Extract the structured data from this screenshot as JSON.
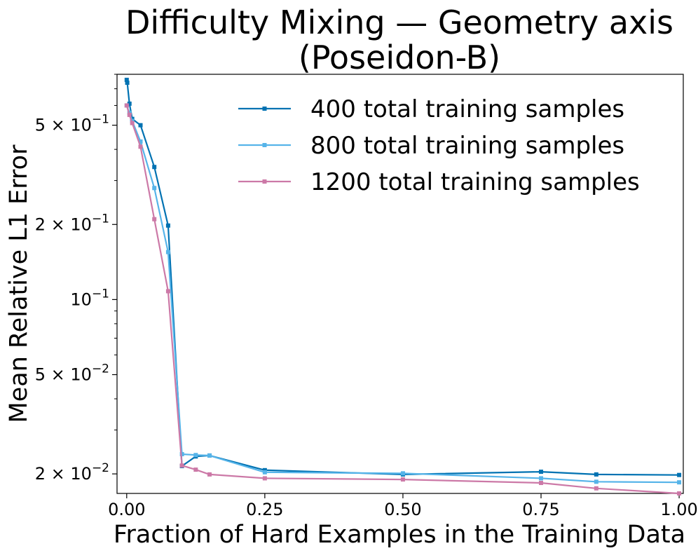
{
  "chart_data": {
    "type": "line",
    "title_line1": "Difficulty Mixing — Geometry axis",
    "title_line2": "(Poseidon-B)",
    "xlabel": "Fraction of Hard Examples in the Training Data",
    "ylabel": "Mean Relative L1 Error",
    "xlim": [
      -0.0175,
      1.0075
    ],
    "ylim": [
      0.0167,
      0.8
    ],
    "yscale": "log",
    "x_ticks": [
      {
        "value": 0.0,
        "label": "0.00"
      },
      {
        "value": 0.25,
        "label": "0.25"
      },
      {
        "value": 0.5,
        "label": "0.50"
      },
      {
        "value": 0.75,
        "label": "0.75"
      },
      {
        "value": 1.0,
        "label": "1.00"
      }
    ],
    "y_ticks": [
      {
        "value": 0.5,
        "base": "5 × 10",
        "exp": "−1"
      },
      {
        "value": 0.2,
        "base": "2 × 10",
        "exp": "−1"
      },
      {
        "value": 0.1,
        "base": "10",
        "exp": "−1"
      },
      {
        "value": 0.05,
        "base": "5 × 10",
        "exp": "−2"
      },
      {
        "value": 0.02,
        "base": "2 × 10",
        "exp": "−2"
      }
    ],
    "legend_position": "upper-right",
    "series": [
      {
        "name": "400 total training samples",
        "color": "#0072b2",
        "x": [
          0.0,
          0.001,
          0.005,
          0.01,
          0.025,
          0.05,
          0.075,
          0.1,
          0.125,
          0.15,
          0.25,
          0.5,
          0.75,
          0.85,
          1.0
        ],
        "y": [
          0.76,
          0.74,
          0.61,
          0.53,
          0.5,
          0.34,
          0.198,
          0.0215,
          0.0235,
          0.0237,
          0.0207,
          0.0199,
          0.0204,
          0.0199,
          0.0198
        ]
      },
      {
        "name": "800 total training samples",
        "color": "#56b4e9",
        "x": [
          0.0,
          0.005,
          0.01,
          0.025,
          0.05,
          0.075,
          0.1,
          0.125,
          0.15,
          0.25,
          0.5,
          0.75,
          0.85,
          1.0
        ],
        "y": [
          0.6,
          0.56,
          0.52,
          0.43,
          0.28,
          0.155,
          0.024,
          0.0238,
          0.0237,
          0.0203,
          0.0201,
          0.0192,
          0.0186,
          0.0185
        ]
      },
      {
        "name": "1200 total training samples",
        "color": "#cc79a7",
        "x": [
          0.0,
          0.005,
          0.01,
          0.025,
          0.05,
          0.075,
          0.1,
          0.125,
          0.15,
          0.25,
          0.5,
          0.75,
          0.85,
          1.0
        ],
        "y": [
          0.6,
          0.55,
          0.51,
          0.41,
          0.21,
          0.108,
          0.0216,
          0.0208,
          0.0199,
          0.0192,
          0.019,
          0.0184,
          0.0175,
          0.0167
        ]
      }
    ]
  }
}
